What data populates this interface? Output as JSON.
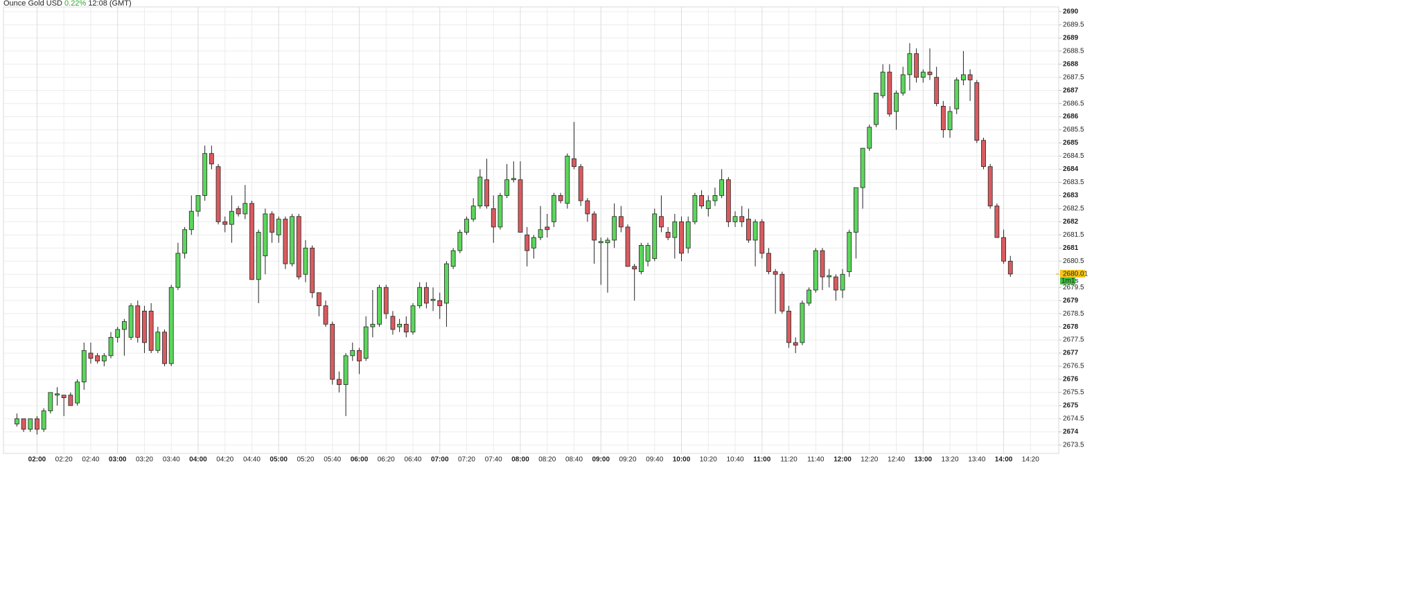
{
  "header": {
    "instrument": "Ounce Gold USD",
    "change": "0.22%",
    "time": "12:08 (GMT)"
  },
  "chart_data": {
    "type": "candlestick",
    "up_color": "#5cd65c",
    "down_color": "#d95b5f",
    "grid": true,
    "x": [
      "01:45",
      "01:50",
      "01:55",
      "02:00",
      "02:05",
      "02:10",
      "02:15",
      "02:20",
      "02:25",
      "02:30",
      "02:35",
      "02:40",
      "02:45",
      "02:50",
      "02:55",
      "03:00",
      "03:05",
      "03:10",
      "03:15",
      "03:20",
      "03:25",
      "03:30",
      "03:35",
      "03:40",
      "03:45",
      "03:50",
      "03:55",
      "04:00",
      "04:05",
      "04:10",
      "04:15",
      "04:20",
      "04:25",
      "04:30",
      "04:35",
      "04:40",
      "04:45",
      "04:50",
      "04:55",
      "05:00",
      "05:05",
      "05:10",
      "05:15",
      "05:20",
      "05:25",
      "05:30",
      "05:35",
      "05:40",
      "05:45",
      "05:50",
      "05:55",
      "06:00",
      "06:05",
      "06:10",
      "06:15",
      "06:20",
      "06:25",
      "06:30",
      "06:35",
      "06:40",
      "06:45",
      "06:50",
      "06:55",
      "07:00",
      "07:05",
      "07:10",
      "07:15",
      "07:20",
      "07:25",
      "07:30",
      "07:35",
      "07:40",
      "07:45",
      "07:50",
      "07:55",
      "08:00",
      "08:05",
      "08:10",
      "08:15",
      "08:20",
      "08:25",
      "08:30",
      "08:35",
      "08:40",
      "08:45",
      "08:50",
      "08:55",
      "09:00",
      "09:05",
      "09:10",
      "09:15",
      "09:20",
      "09:25",
      "09:30",
      "09:35",
      "09:40",
      "09:45",
      "09:50",
      "09:55",
      "10:00",
      "10:05",
      "10:10",
      "10:15",
      "10:20",
      "10:25",
      "10:30",
      "10:35",
      "10:40",
      "10:45",
      "10:50",
      "10:55",
      "11:00",
      "11:05",
      "11:10",
      "11:15",
      "11:20",
      "11:25",
      "11:30",
      "11:35",
      "11:40",
      "11:45",
      "11:50",
      "11:55",
      "12:00",
      "12:05",
      "12:10",
      "12:15",
      "12:20",
      "12:25",
      "12:30",
      "12:35",
      "12:40",
      "12:45",
      "12:50",
      "12:55",
      "13:00",
      "13:05",
      "13:10",
      "13:15",
      "13:20",
      "13:25",
      "13:30",
      "13:35",
      "13:40",
      "13:45",
      "13:50",
      "13:55",
      "14:00",
      "14:05"
    ],
    "open": [
      2674.3,
      2674.5,
      2674.1,
      2674.5,
      2674.1,
      2674.8,
      2675.4,
      2675.4,
      2675.4,
      2675.1,
      2675.9,
      2677.0,
      2676.9,
      2676.7,
      2676.9,
      2677.6,
      2677.9,
      2677.6,
      2678.8,
      2678.6,
      2678.6,
      2677.1,
      2677.8,
      2676.6,
      2679.5,
      2680.8,
      2681.7,
      2682.4,
      2683.0,
      2684.6,
      2684.1,
      2682.0,
      2681.9,
      2682.5,
      2682.3,
      2682.7,
      2679.8,
      2680.7,
      2682.3,
      2681.5,
      2682.1,
      2680.4,
      2682.2,
      2680.0,
      2681.0,
      2679.3,
      2678.8,
      2678.1,
      2676.0,
      2675.8,
      2676.9,
      2677.1,
      2676.8,
      2678.0,
      2678.1,
      2679.5,
      2678.4,
      2678.0,
      2678.1,
      2677.8,
      2678.8,
      2679.5,
      2679.0,
      2679.0,
      2678.9,
      2680.3,
      2680.9,
      2681.6,
      2682.1,
      2682.6,
      2683.6,
      2682.5,
      2681.8,
      2683.0,
      2683.6,
      2683.6,
      2681.5,
      2681.0,
      2681.4,
      2681.8,
      2682.0,
      2683.0,
      2682.7,
      2684.4,
      2684.1,
      2682.8,
      2682.3,
      2681.2,
      2681.2,
      2681.3,
      2682.2,
      2681.8,
      2680.3,
      2680.1,
      2680.5,
      2680.6,
      2682.2,
      2681.6,
      2681.4,
      2682.0,
      2681.0,
      2682.0,
      2683.0,
      2682.5,
      2682.8,
      2683.0,
      2683.6,
      2682.0,
      2682.2,
      2682.1,
      2681.3,
      2682.0,
      2680.8,
      2680.1,
      2680.0,
      2678.6,
      2677.4,
      2677.4,
      2678.9,
      2679.4,
      2680.9,
      2679.9,
      2679.9,
      2679.4,
      2680.1,
      2681.6,
      2683.3,
      2684.8,
      2685.7,
      2686.8,
      2687.7,
      2686.2,
      2686.9,
      2687.6,
      2688.4,
      2687.5,
      2687.7,
      2687.5,
      2686.4,
      2685.5,
      2686.3,
      2687.4,
      2687.6,
      2687.3,
      2685.1,
      2684.1,
      2682.6,
      2681.4,
      2680.5
    ],
    "high": [
      2674.7,
      2674.5,
      2674.5,
      2674.6,
      2674.9,
      2675.5,
      2675.7,
      2675.4,
      2675.5,
      2676.0,
      2677.4,
      2677.4,
      2677.0,
      2677.0,
      2677.8,
      2678.0,
      2678.3,
      2678.9,
      2679.0,
      2678.8,
      2678.9,
      2678.0,
      2677.9,
      2679.6,
      2681.2,
      2681.8,
      2683.0,
      2683.0,
      2684.9,
      2684.9,
      2684.2,
      2682.2,
      2683.0,
      2682.6,
      2683.4,
      2682.8,
      2681.7,
      2682.5,
      2682.4,
      2682.2,
      2682.2,
      2682.3,
      2682.3,
      2681.3,
      2681.1,
      2679.3,
      2679.0,
      2678.2,
      2676.3,
      2677.0,
      2677.4,
      2677.2,
      2678.4,
      2679.4,
      2679.6,
      2679.6,
      2678.6,
      2678.3,
      2678.4,
      2678.9,
      2679.7,
      2679.7,
      2679.5,
      2679.3,
      2680.5,
      2681.0,
      2681.7,
      2682.2,
      2682.9,
      2684.0,
      2684.4,
      2683.0,
      2683.1,
      2684.2,
      2684.3,
      2684.3,
      2681.8,
      2681.5,
      2682.6,
      2682.3,
      2683.1,
      2683.1,
      2684.6,
      2685.8,
      2684.2,
      2682.9,
      2682.4,
      2681.4,
      2681.4,
      2682.7,
      2682.6,
      2681.9,
      2680.4,
      2681.2,
      2681.2,
      2682.5,
      2683.0,
      2681.8,
      2682.3,
      2682.2,
      2682.2,
      2683.1,
      2683.2,
      2683.0,
      2683.3,
      2684.0,
      2683.7,
      2682.4,
      2682.6,
      2682.5,
      2682.1,
      2682.1,
      2681.0,
      2680.2,
      2680.1,
      2678.8,
      2677.6,
      2679.0,
      2679.5,
      2681.0,
      2681.0,
      2680.2,
      2680.0,
      2680.2,
      2681.7,
      2683.3,
      2684.8,
      2685.7,
      2686.9,
      2688.0,
      2688.0,
      2687.0,
      2687.9,
      2688.8,
      2688.6,
      2687.8,
      2688.6,
      2687.9,
      2686.6,
      2686.4,
      2687.5,
      2688.5,
      2687.8,
      2687.4,
      2685.2,
      2684.2,
      2682.7,
      2681.7,
      2680.7
    ],
    "low": [
      2674.2,
      2674.0,
      2674.0,
      2673.9,
      2674.0,
      2674.7,
      2675.0,
      2674.6,
      2675.0,
      2675.0,
      2675.6,
      2676.6,
      2676.6,
      2676.5,
      2676.8,
      2677.4,
      2676.9,
      2677.5,
      2677.4,
      2677.0,
      2677.0,
      2677.0,
      2676.5,
      2676.5,
      2679.4,
      2680.6,
      2681.5,
      2682.2,
      2682.8,
      2684.0,
      2681.9,
      2681.6,
      2681.2,
      2682.2,
      2682.1,
      2679.8,
      2678.9,
      2680.0,
      2681.2,
      2681.2,
      2680.2,
      2680.3,
      2679.8,
      2679.7,
      2679.1,
      2678.4,
      2678.0,
      2675.8,
      2675.5,
      2674.6,
      2676.7,
      2676.2,
      2676.7,
      2677.6,
      2678.0,
      2678.3,
      2677.7,
      2677.8,
      2677.6,
      2677.7,
      2678.7,
      2678.7,
      2678.6,
      2678.3,
      2678.0,
      2680.2,
      2680.8,
      2681.5,
      2682.0,
      2682.5,
      2682.5,
      2681.2,
      2681.7,
      2682.9,
      2683.5,
      2681.6,
      2680.3,
      2680.6,
      2681.3,
      2681.4,
      2681.8,
      2682.7,
      2682.5,
      2684.0,
      2682.6,
      2682.0,
      2680.4,
      2679.6,
      2679.3,
      2681.0,
      2681.6,
      2680.3,
      2679.0,
      2680.0,
      2680.3,
      2680.5,
      2681.6,
      2681.3,
      2680.6,
      2680.5,
      2680.8,
      2681.9,
      2682.5,
      2682.2,
      2682.6,
      2682.9,
      2681.8,
      2681.8,
      2681.8,
      2681.2,
      2680.3,
      2680.6,
      2680.0,
      2678.5,
      2678.5,
      2677.2,
      2677.0,
      2677.3,
      2678.8,
      2679.3,
      2679.4,
      2679.5,
      2679.0,
      2679.1,
      2679.9,
      2680.6,
      2682.5,
      2684.7,
      2685.6,
      2686.7,
      2686.0,
      2685.5,
      2686.8,
      2687.0,
      2687.3,
      2687.3,
      2687.4,
      2686.4,
      2685.2,
      2685.2,
      2686.1,
      2687.2,
      2686.6,
      2685.0,
      2684.0,
      2682.5,
      2681.4,
      2680.4,
      2679.9
    ],
    "close": [
      2674.5,
      2674.1,
      2674.5,
      2674.1,
      2674.8,
      2675.5,
      2675.45,
      2675.3,
      2675.0,
      2675.9,
      2677.1,
      2676.8,
      2676.7,
      2676.9,
      2677.6,
      2677.9,
      2678.2,
      2678.8,
      2677.6,
      2677.4,
      2677.1,
      2677.8,
      2676.6,
      2679.5,
      2680.8,
      2681.7,
      2682.4,
      2683.0,
      2684.6,
      2684.2,
      2682.0,
      2681.9,
      2682.4,
      2682.3,
      2682.7,
      2679.8,
      2681.6,
      2682.3,
      2681.6,
      2682.1,
      2680.4,
      2682.2,
      2679.9,
      2681.0,
      2679.3,
      2678.8,
      2678.1,
      2676.0,
      2675.8,
      2676.9,
      2677.1,
      2676.7,
      2678.0,
      2678.1,
      2679.5,
      2678.5,
      2677.9,
      2678.1,
      2677.8,
      2678.8,
      2679.5,
      2678.9,
      2679.05,
      2678.8,
      2680.4,
      2680.9,
      2681.6,
      2682.1,
      2682.6,
      2683.7,
      2682.6,
      2681.8,
      2683.0,
      2683.6,
      2683.65,
      2681.6,
      2680.9,
      2681.4,
      2681.7,
      2681.7,
      2683.0,
      2682.8,
      2684.5,
      2684.1,
      2682.8,
      2682.3,
      2681.3,
      2681.25,
      2681.3,
      2682.2,
      2681.8,
      2680.3,
      2680.2,
      2681.1,
      2681.1,
      2682.3,
      2681.8,
      2681.4,
      2682.0,
      2680.8,
      2682.0,
      2683.0,
      2682.6,
      2682.8,
      2683.0,
      2683.6,
      2682.0,
      2682.2,
      2682.0,
      2681.3,
      2682.0,
      2680.8,
      2680.1,
      2680.0,
      2678.6,
      2677.4,
      2677.3,
      2678.9,
      2679.4,
      2680.9,
      2679.9,
      2679.95,
      2679.4,
      2680.0,
      2681.6,
      2683.3,
      2684.8,
      2685.6,
      2686.9,
      2687.7,
      2686.1,
      2686.9,
      2687.6,
      2688.4,
      2687.5,
      2687.7,
      2687.6,
      2686.5,
      2685.5,
      2686.2,
      2687.4,
      2687.6,
      2687.4,
      2685.1,
      2684.1,
      2682.6,
      2681.4,
      2680.5,
      2680.01
    ],
    "countdown": "1m1s",
    "xlim": [
      "01:35",
      "14:41"
    ],
    "xticks": [
      "02:00",
      "02:20",
      "02:40",
      "03:00",
      "03:20",
      "03:40",
      "04:00",
      "04:20",
      "04:40",
      "05:00",
      "05:20",
      "05:40",
      "06:00",
      "06:20",
      "06:40",
      "07:00",
      "07:20",
      "07:40",
      "08:00",
      "08:20",
      "08:40",
      "09:00",
      "09:20",
      "09:40",
      "10:00",
      "10:20",
      "10:40",
      "11:00",
      "11:20",
      "11:40",
      "12:00",
      "12:20",
      "12:40",
      "13:00",
      "13:20",
      "13:40",
      "14:00",
      "14:20"
    ],
    "ylim": [
      2673.18,
      2690.18
    ],
    "yticks": [
      2673.5,
      2674,
      2674.5,
      2675,
      2675.5,
      2676,
      2676.5,
      2677,
      2677.5,
      2678,
      2678.5,
      2679,
      2679.5,
      2680,
      2680.5,
      2681,
      2681.5,
      2682,
      2682.5,
      2683,
      2683.5,
      2684,
      2684.5,
      2685,
      2685.5,
      2686,
      2686.5,
      2687,
      2687.5,
      2688,
      2688.5,
      2689,
      2689.5,
      2690
    ]
  }
}
